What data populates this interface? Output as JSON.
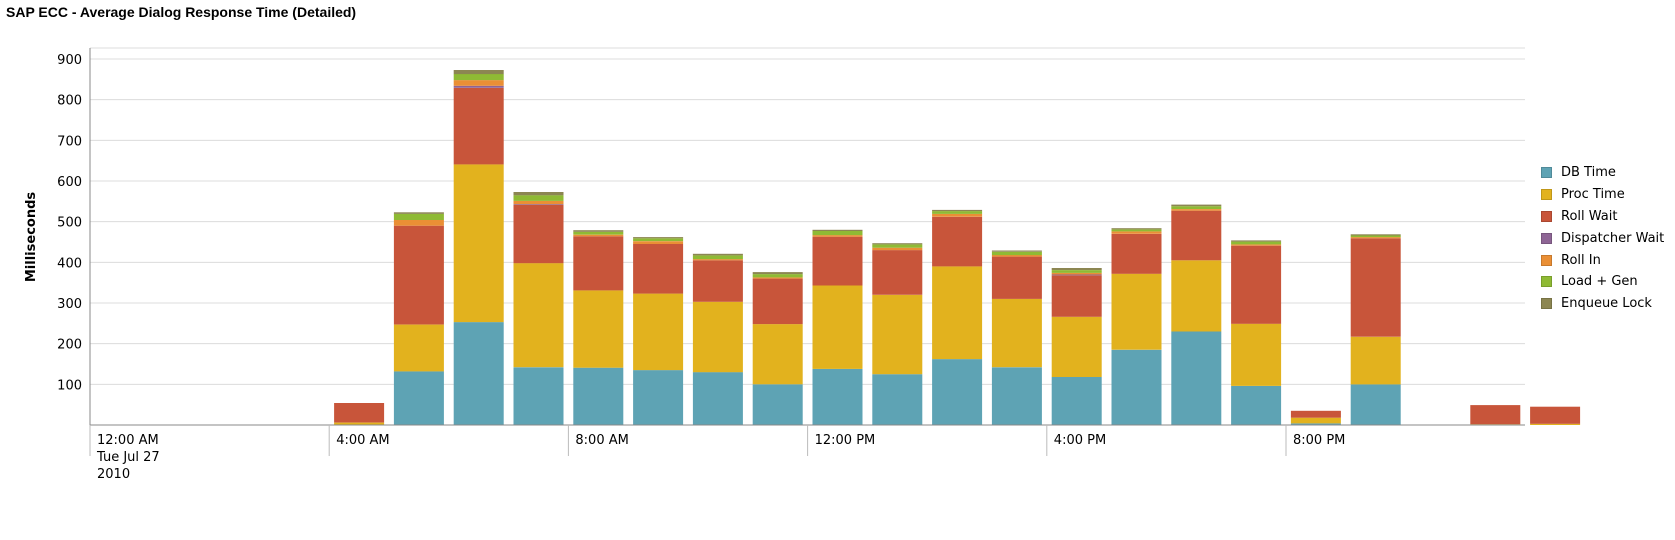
{
  "chart_data": {
    "type": "bar",
    "stacked": true,
    "title": "SAP ECC - Average Dialog Response Time (Detailed)",
    "ylabel": "Milliseconds",
    "xlabel": "",
    "ylim": [
      0,
      900
    ],
    "yticks": [
      100,
      200,
      300,
      400,
      500,
      600,
      700,
      800,
      900
    ],
    "grid": true,
    "legend_position": "right",
    "x_tick_labels": [
      {
        "slot": 0,
        "lines": [
          "12:00 AM",
          "Tue Jul 27",
          "2010"
        ]
      },
      {
        "slot": 4,
        "lines": [
          "4:00 AM"
        ]
      },
      {
        "slot": 8,
        "lines": [
          "8:00 AM"
        ]
      },
      {
        "slot": 12,
        "lines": [
          "12:00 PM"
        ]
      },
      {
        "slot": 16,
        "lines": [
          "4:00 PM"
        ]
      },
      {
        "slot": 20,
        "lines": [
          "8:00 PM"
        ]
      }
    ],
    "series": [
      {
        "name": "DB Time",
        "color": "#5ea3b4",
        "values": [
          0,
          0,
          0,
          0,
          0,
          132,
          253,
          142,
          141,
          135,
          130,
          100,
          138,
          125,
          162,
          142,
          118,
          185,
          230,
          96,
          4,
          100,
          0,
          0,
          0
        ]
      },
      {
        "name": "Proc Time",
        "color": "#e2b21e",
        "values": [
          0,
          0,
          0,
          0,
          6,
          115,
          388,
          256,
          190,
          188,
          173,
          148,
          205,
          195,
          228,
          168,
          148,
          187,
          175,
          153,
          14,
          117,
          0,
          2,
          3
        ]
      },
      {
        "name": "Roll Wait",
        "color": "#c8553a",
        "values": [
          0,
          0,
          0,
          0,
          48,
          243,
          188,
          143,
          133,
          122,
          102,
          112,
          120,
          110,
          122,
          104,
          102,
          98,
          122,
          192,
          17,
          242,
          0,
          47,
          42
        ]
      },
      {
        "name": "Dispatcher Wait",
        "color": "#8e6595",
        "values": [
          0,
          0,
          0,
          0,
          0,
          0,
          5,
          2,
          0,
          0,
          0,
          0,
          0,
          0,
          0,
          0,
          2,
          0,
          0,
          0,
          0,
          0,
          0,
          0,
          0
        ]
      },
      {
        "name": "Roll In",
        "color": "#ea8f35",
        "values": [
          0,
          0,
          0,
          0,
          0,
          14,
          14,
          8,
          4,
          7,
          3,
          3,
          4,
          6,
          7,
          4,
          4,
          6,
          4,
          3,
          0,
          3,
          0,
          0,
          0
        ]
      },
      {
        "name": "Load + Gen",
        "color": "#8fba34",
        "values": [
          0,
          0,
          0,
          0,
          0,
          15,
          15,
          14,
          7,
          7,
          9,
          8,
          10,
          8,
          7,
          8,
          7,
          5,
          7,
          7,
          0,
          4,
          0,
          0,
          0
        ]
      },
      {
        "name": "Enqueue Lock",
        "color": "#8c8652",
        "values": [
          0,
          0,
          0,
          0,
          0,
          4,
          10,
          8,
          4,
          3,
          4,
          5,
          3,
          3,
          3,
          3,
          5,
          3,
          4,
          3,
          0,
          3,
          0,
          0,
          0
        ]
      }
    ]
  }
}
